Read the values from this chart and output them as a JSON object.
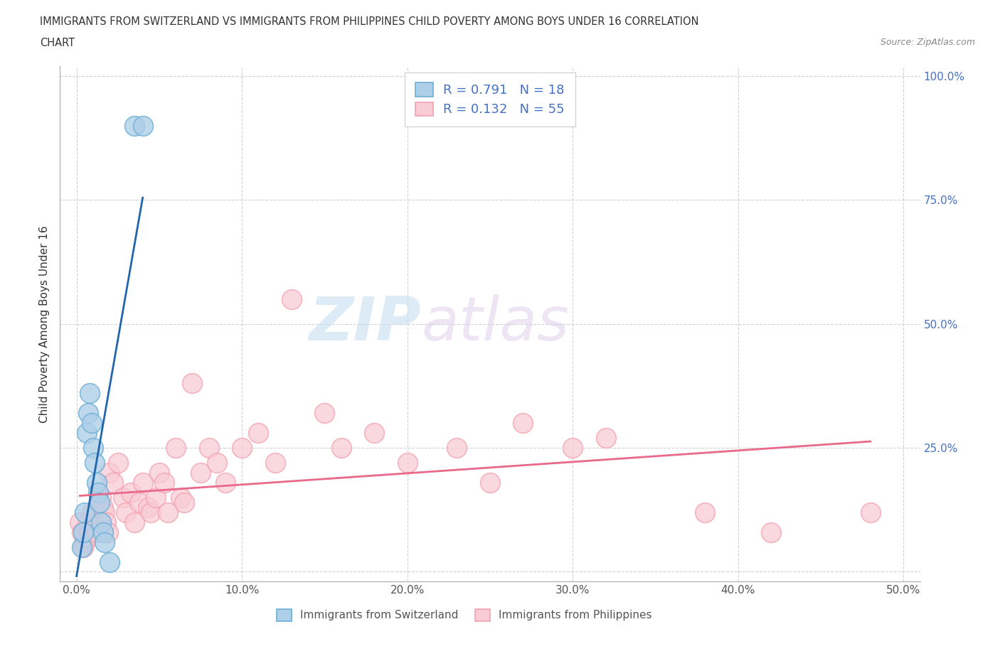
{
  "title_line1": "IMMIGRANTS FROM SWITZERLAND VS IMMIGRANTS FROM PHILIPPINES CHILD POVERTY AMONG BOYS UNDER 16 CORRELATION",
  "title_line2": "CHART",
  "source": "Source: ZipAtlas.com",
  "ylabel": "Child Poverty Among Boys Under 16",
  "xlim": [
    -1,
    51
  ],
  "ylim": [
    -2,
    102
  ],
  "xticks": [
    0,
    10,
    20,
    30,
    40,
    50
  ],
  "xtick_labels": [
    "0.0%",
    "10.0%",
    "20.0%",
    "30.0%",
    "40.0%",
    "50.0%"
  ],
  "yticks": [
    0,
    25,
    50,
    75,
    100
  ],
  "ytick_labels": [
    "",
    "25.0%",
    "50.0%",
    "75.0%",
    "100.0%"
  ],
  "swiss_color": "#6baed6",
  "swiss_color_fill": "#aecfe8",
  "phil_color": "#f4a0b0",
  "phil_color_fill": "#f9ccd5",
  "swiss_line_color": "#2166ac",
  "phil_line_color": "#e8698a",
  "swiss_R": 0.791,
  "swiss_N": 18,
  "phil_R": 0.132,
  "phil_N": 55,
  "watermark_zip": "ZIP",
  "watermark_atlas": "atlas",
  "legend_label_swiss": "Immigrants from Switzerland",
  "legend_label_phil": "Immigrants from Philippines",
  "swiss_x": [
    0.3,
    0.4,
    0.5,
    0.6,
    0.7,
    0.8,
    0.9,
    1.0,
    1.1,
    1.2,
    1.3,
    1.4,
    1.5,
    1.6,
    1.7,
    2.0,
    3.5,
    4.0
  ],
  "swiss_y": [
    5,
    8,
    12,
    28,
    32,
    36,
    30,
    25,
    22,
    18,
    16,
    14,
    10,
    8,
    6,
    2,
    90,
    90
  ],
  "phil_x": [
    0.2,
    0.3,
    0.4,
    0.5,
    0.6,
    0.7,
    0.8,
    0.9,
    1.0,
    1.1,
    1.2,
    1.5,
    1.6,
    1.7,
    1.8,
    1.9,
    2.0,
    2.2,
    2.5,
    2.8,
    3.0,
    3.3,
    3.5,
    3.8,
    4.0,
    4.3,
    4.5,
    4.8,
    5.0,
    5.3,
    5.5,
    6.0,
    6.3,
    6.5,
    7.0,
    7.5,
    8.0,
    8.5,
    9.0,
    10.0,
    11.0,
    12.0,
    13.0,
    15.0,
    16.0,
    18.0,
    20.0,
    23.0,
    25.0,
    27.0,
    30.0,
    32.0,
    38.0,
    42.0,
    48.0
  ],
  "phil_y": [
    10,
    8,
    5,
    6,
    7,
    10,
    8,
    12,
    11,
    9,
    8,
    15,
    13,
    12,
    10,
    8,
    20,
    18,
    22,
    15,
    12,
    16,
    10,
    14,
    18,
    13,
    12,
    15,
    20,
    18,
    12,
    25,
    15,
    14,
    38,
    20,
    25,
    22,
    18,
    25,
    28,
    22,
    55,
    32,
    25,
    28,
    22,
    25,
    18,
    30,
    25,
    27,
    12,
    8,
    12
  ]
}
